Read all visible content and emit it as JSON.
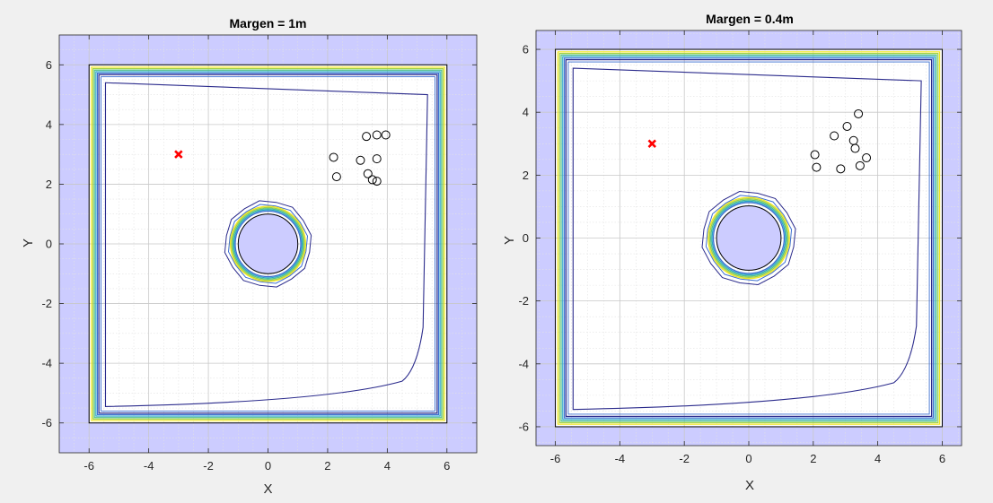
{
  "chart_data": [
    {
      "type": "contour",
      "title": "Margen = 1m",
      "xlabel": "X",
      "ylabel": "Y",
      "xlim": [
        -7,
        7
      ],
      "ylim": [
        -7,
        7
      ],
      "xticks": [
        -6,
        -4,
        -2,
        0,
        2,
        4,
        6
      ],
      "yticks": [
        -6,
        -4,
        -2,
        0,
        2,
        4,
        6
      ],
      "grid": true,
      "minor_grid": true,
      "colors": {
        "obstacle_fill": "#ccccff",
        "contours": [
          "#2b2b8c",
          "#3d6fd1",
          "#2aa4c8",
          "#4fc08a",
          "#9fd144",
          "#f1e51d"
        ],
        "target_marker": "#ff0000"
      },
      "room": {
        "x_range": [
          -6,
          6
        ],
        "y_range": [
          -6,
          6
        ],
        "margin": 1
      },
      "circular_obstacle": {
        "center": [
          0,
          0
        ],
        "radius": 1
      },
      "target": {
        "x": -3,
        "y": 3,
        "marker": "x"
      },
      "points": [
        {
          "x": 2.2,
          "y": 2.9
        },
        {
          "x": 2.3,
          "y": 2.25
        },
        {
          "x": 3.3,
          "y": 3.6
        },
        {
          "x": 3.65,
          "y": 3.65
        },
        {
          "x": 3.95,
          "y": 3.65
        },
        {
          "x": 3.1,
          "y": 2.8
        },
        {
          "x": 3.65,
          "y": 2.85
        },
        {
          "x": 3.35,
          "y": 2.35
        },
        {
          "x": 3.5,
          "y": 2.15
        },
        {
          "x": 3.65,
          "y": 2.1
        }
      ]
    },
    {
      "type": "contour",
      "title": "Margen = 0.4m",
      "xlabel": "X",
      "ylabel": "Y",
      "xlim": [
        -6.6,
        6.6
      ],
      "ylim": [
        -6.6,
        6.6
      ],
      "xticks": [
        -6,
        -4,
        -2,
        0,
        2,
        4,
        6
      ],
      "yticks": [
        -6,
        -4,
        -2,
        0,
        2,
        4,
        6
      ],
      "grid": true,
      "minor_grid": true,
      "colors": {
        "obstacle_fill": "#ccccff",
        "contours": [
          "#2b2b8c",
          "#3d6fd1",
          "#2aa4c8",
          "#4fc08a",
          "#9fd144",
          "#f1e51d"
        ],
        "target_marker": "#ff0000"
      },
      "room": {
        "x_range": [
          -6,
          6
        ],
        "y_range": [
          -6,
          6
        ],
        "margin": 0.4
      },
      "circular_obstacle": {
        "center": [
          0,
          0
        ],
        "radius": 1
      },
      "target": {
        "x": -3,
        "y": 3,
        "marker": "x"
      },
      "points": [
        {
          "x": 3.4,
          "y": 3.95
        },
        {
          "x": 3.05,
          "y": 3.55
        },
        {
          "x": 2.65,
          "y": 3.25
        },
        {
          "x": 3.25,
          "y": 3.1
        },
        {
          "x": 3.3,
          "y": 2.85
        },
        {
          "x": 2.05,
          "y": 2.65
        },
        {
          "x": 3.65,
          "y": 2.55
        },
        {
          "x": 2.1,
          "y": 2.25
        },
        {
          "x": 2.85,
          "y": 2.2
        },
        {
          "x": 3.45,
          "y": 2.3
        }
      ]
    }
  ]
}
